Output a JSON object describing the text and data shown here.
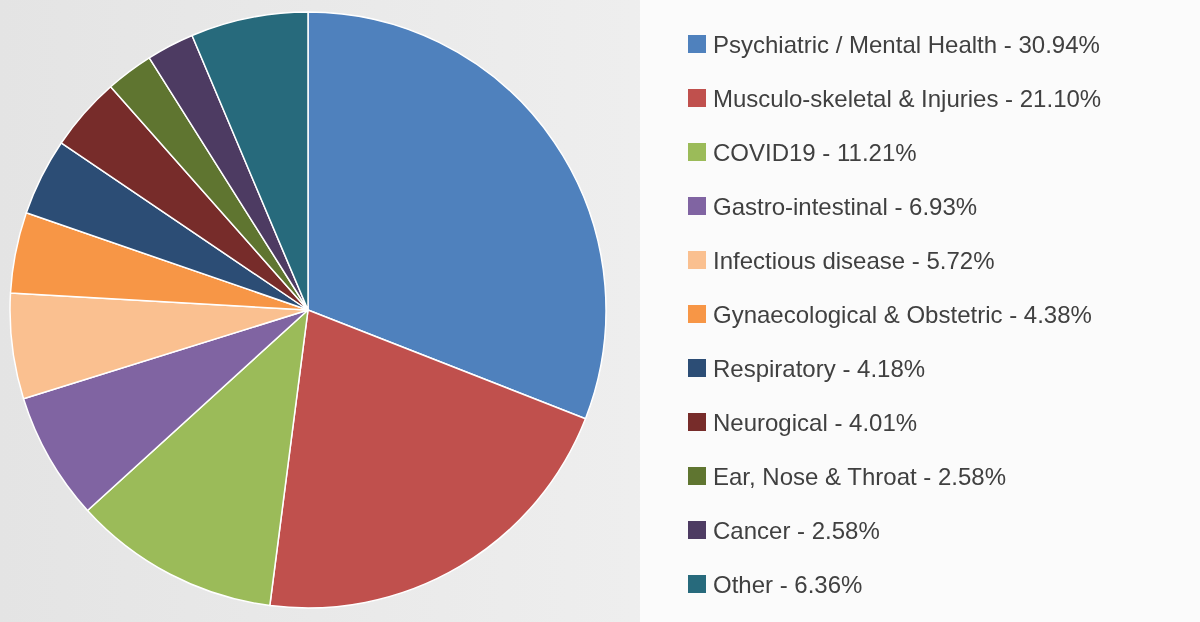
{
  "chart_data": {
    "type": "pie",
    "categories": [
      "Psychiatric / Mental Health",
      "Musculo-skeletal & Injuries",
      "COVID19",
      "Gastro-intestinal",
      "Infectious disease",
      "Gynaecological & Obstetric",
      "Respiratory",
      "Neurogical",
      "Ear, Nose & Throat",
      "Cancer",
      "Other"
    ],
    "values": [
      30.94,
      21.1,
      11.21,
      6.93,
      5.72,
      4.38,
      4.18,
      4.01,
      2.58,
      2.58,
      6.36
    ],
    "value_labels": [
      "30.94%",
      "21.10%",
      "11.21%",
      "6.93%",
      "5.72%",
      "4.38%",
      "4.18%",
      "4.01%",
      "2.58%",
      "2.58%",
      "6.36%"
    ],
    "colors": [
      "#4f81bd",
      "#c0504d",
      "#9bbb59",
      "#8064a2",
      "#fac090",
      "#f79646",
      "#2c4d75",
      "#772c2a",
      "#5f7530",
      "#4d3b62",
      "#276a7c"
    ],
    "legend": "right"
  }
}
